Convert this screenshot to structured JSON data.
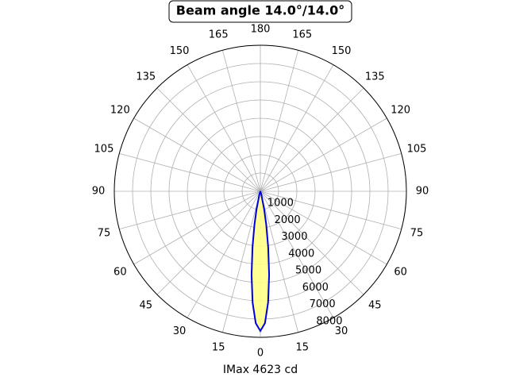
{
  "chart_data": {
    "type": "polar",
    "title": "Beam angle 14.0°/14.0°",
    "xlabel": "IMax 4623 cd",
    "theta": [
      -20,
      -16,
      -12,
      -10,
      -8,
      -6,
      -4,
      -2,
      0,
      2,
      4,
      6,
      8,
      10,
      12,
      16,
      20
    ],
    "values": [
      27,
      205,
      1000,
      1860,
      3090,
      4600,
      6100,
      7230,
      7650,
      7230,
      6100,
      4600,
      3090,
      1860,
      1000,
      205,
      27
    ],
    "color": "#0000dd",
    "fill": "#ffff88",
    "rlim": [
      0,
      8000
    ],
    "rticks": [
      1000,
      2000,
      3000,
      4000,
      5000,
      6000,
      7000,
      8000
    ],
    "thetaticks": [
      0,
      15,
      30,
      45,
      60,
      75,
      90,
      105,
      120,
      135,
      150,
      165,
      180,
      {
        "value": 195,
        "label": "165"
      },
      {
        "value": 210,
        "label": "150"
      },
      {
        "value": 225,
        "label": "135"
      },
      {
        "value": 240,
        "label": "120"
      },
      {
        "value": 255,
        "label": "105"
      },
      {
        "value": 270,
        "label": "90"
      },
      {
        "value": 285,
        "label": "75"
      },
      {
        "value": 300,
        "label": "60"
      },
      {
        "value": 315,
        "label": "45"
      },
      {
        "value": 330,
        "label": "30"
      },
      {
        "value": 345,
        "label": "15"
      }
    ],
    "grid": true
  }
}
